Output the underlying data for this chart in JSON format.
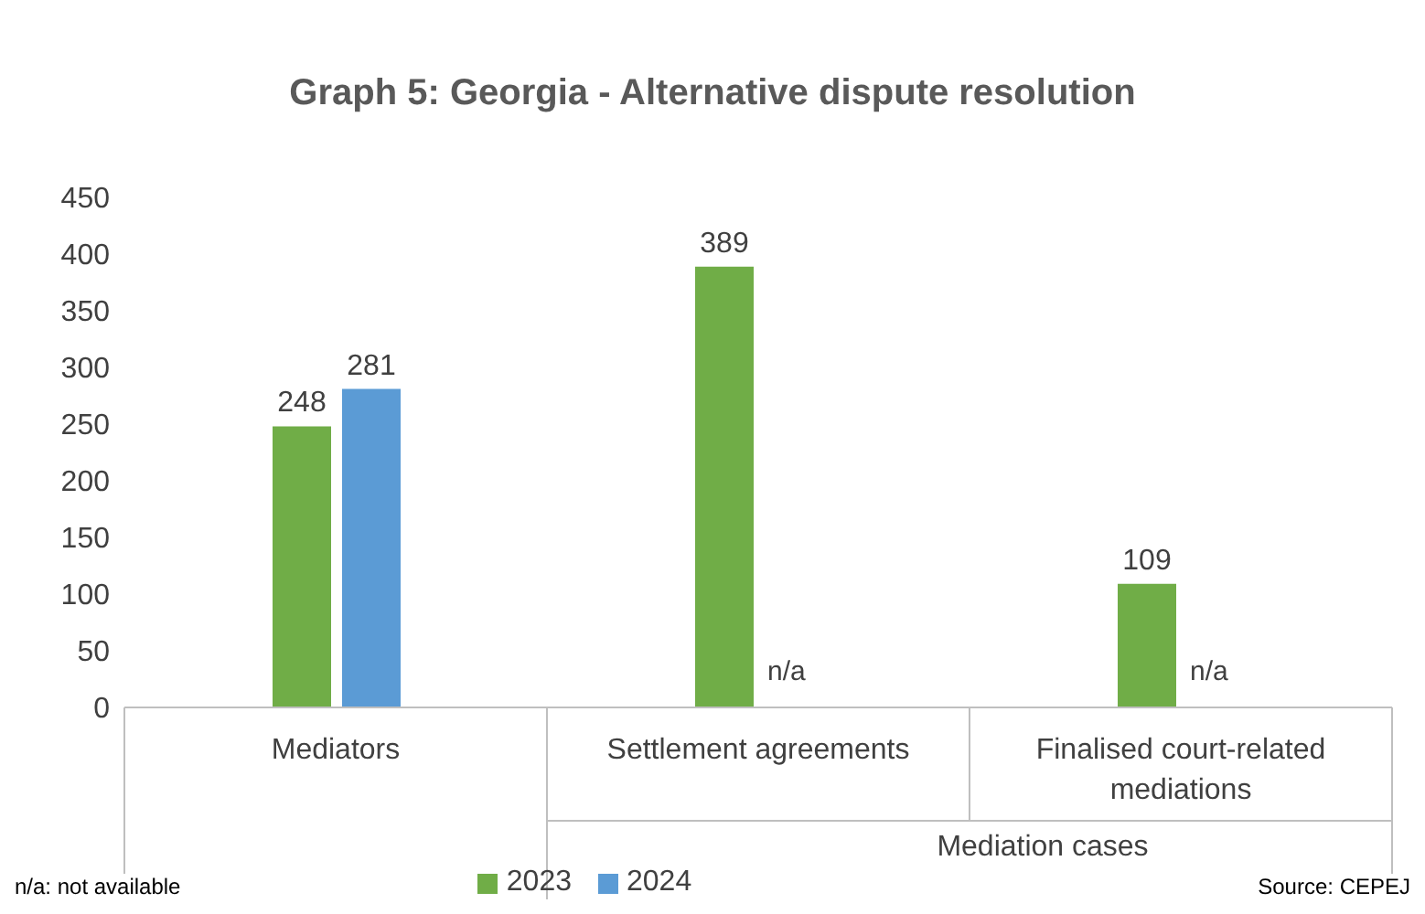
{
  "chart_data": {
    "type": "bar",
    "title": "Graph 5: Georgia - Alternative dispute resolution",
    "categories": [
      "Mediators",
      "Settlement agreements",
      "Finalised court-related mediations"
    ],
    "series": [
      {
        "name": "2023",
        "color": "#70ad47",
        "values": [
          248,
          389,
          109
        ],
        "value_labels": [
          "248",
          "389",
          "109"
        ]
      },
      {
        "name": "2024",
        "color": "#5b9bd5",
        "values": [
          281,
          null,
          null
        ],
        "value_labels": [
          "281",
          "n/a",
          "n/a"
        ]
      }
    ],
    "ylim": [
      0,
      450
    ],
    "yticks": [
      0,
      50,
      100,
      150,
      200,
      250,
      300,
      350,
      400,
      450
    ],
    "grid": false,
    "legend": "bottom",
    "annotations": [
      "Mediation cases",
      "n/a: not available",
      "Source: CEPEJ"
    ]
  }
}
